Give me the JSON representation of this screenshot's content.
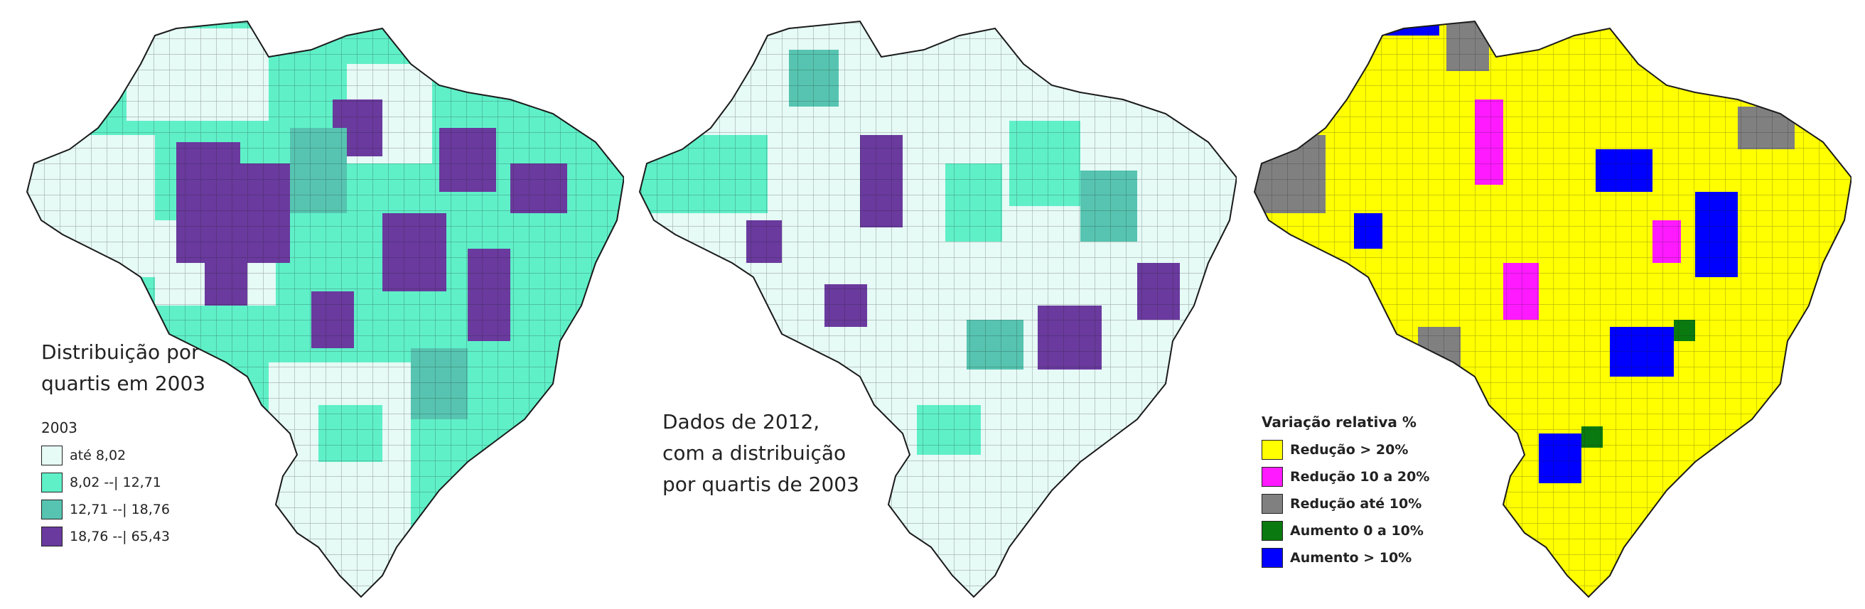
{
  "maps": [
    {
      "caption_lines": [
        "Distribuição por",
        "quartis em 2003"
      ],
      "legend": {
        "title": "2003",
        "items": [
          {
            "label": "até 8,02",
            "color": "#e6faf6"
          },
          {
            "label": "8,02 --| 12,71",
            "color": "#5ff0c8"
          },
          {
            "label": "12,71 --| 18,76",
            "color": "#56c4b0"
          },
          {
            "label": "18,76 --| 65,43",
            "color": "#6a3a9e"
          }
        ]
      }
    },
    {
      "caption_lines": [
        "Dados de 2012,",
        "com a distribuição",
        "por quartis de 2003"
      ]
    },
    {
      "legend": {
        "title": "Variação relativa %",
        "items": [
          {
            "label": "Redução > 20%",
            "color": "#ffff00"
          },
          {
            "label": "Redução 10 a 20%",
            "color": "#ff1aff"
          },
          {
            "label": "Redução até 10%",
            "color": "#808080"
          },
          {
            "label": "Aumento 0 a 10%",
            "color": "#0a7a10"
          },
          {
            "label": "Aumento > 10%",
            "color": "#0000ff"
          }
        ]
      }
    }
  ]
}
